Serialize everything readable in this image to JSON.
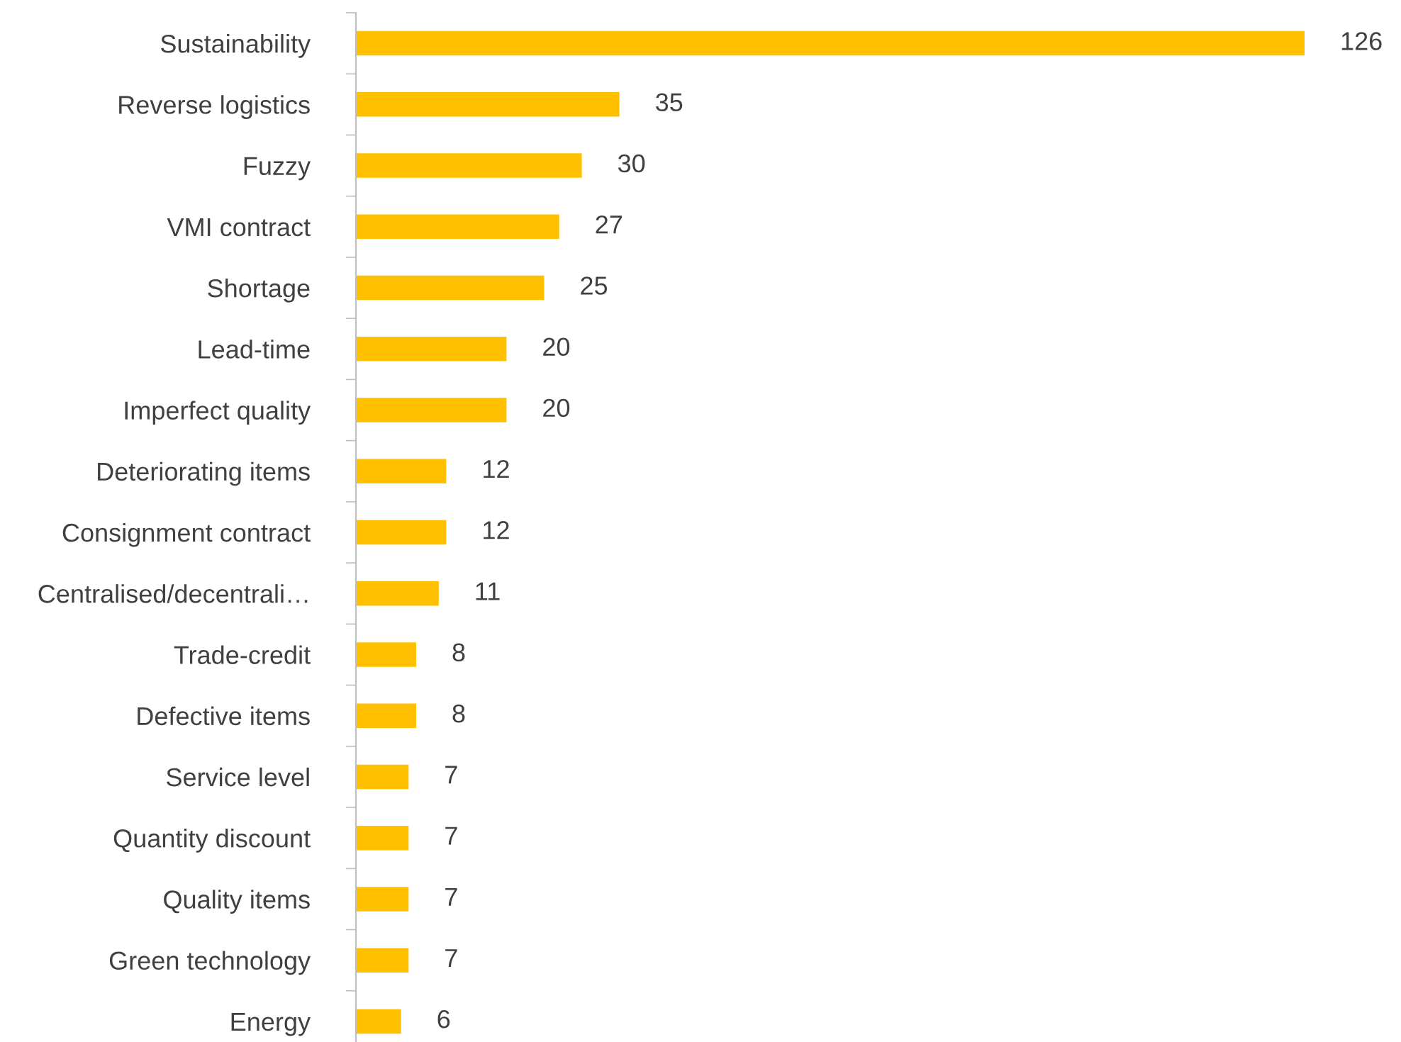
{
  "chart_data": {
    "type": "bar",
    "orientation": "horizontal",
    "categories": [
      "Sustainability",
      "Reverse logistics",
      "Fuzzy",
      "VMI contract",
      "Shortage",
      "Lead-time",
      "Imperfect quality",
      "Deteriorating items",
      "Consignment contract",
      "Centralised/decentrali…",
      "Trade-credit",
      "Defective items",
      "Service level",
      "Quantity discount",
      "Quality items",
      "Green technology",
      "Energy"
    ],
    "values": [
      126,
      35,
      30,
      27,
      25,
      20,
      20,
      12,
      12,
      11,
      8,
      8,
      7,
      7,
      7,
      7,
      6
    ],
    "color": "#ffc000",
    "data_labels": true,
    "grid": false,
    "legend": false,
    "tick_labels": "y"
  }
}
